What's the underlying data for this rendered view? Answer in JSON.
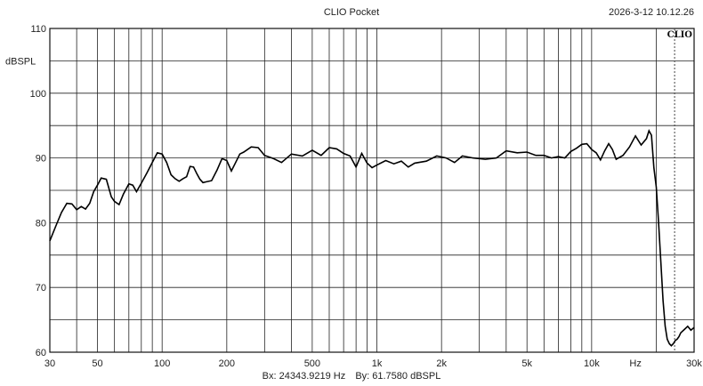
{
  "header": {
    "title": "CLIO Pocket",
    "timestamp": "2026-3-12 10.12.26"
  },
  "logo": "CLIO",
  "readout": {
    "bx": "Bx: 24343.9219 Hz",
    "by": "By: 61.7580 dBSPL"
  },
  "chart_data": {
    "type": "line",
    "x_scale": "log",
    "xlim": [
      30,
      30000
    ],
    "ylim": [
      60,
      110
    ],
    "ylabel": "dBSPL",
    "xunit_label": "Hz",
    "grid": true,
    "x_ticks": [
      {
        "value": 30,
        "label": "30"
      },
      {
        "value": 50,
        "label": "50"
      },
      {
        "value": 100,
        "label": "100"
      },
      {
        "value": 200,
        "label": "200"
      },
      {
        "value": 500,
        "label": "500"
      },
      {
        "value": 1000,
        "label": "1k"
      },
      {
        "value": 2000,
        "label": "2k"
      },
      {
        "value": 5000,
        "label": "5k"
      },
      {
        "value": 10000,
        "label": "10k"
      },
      {
        "value": 30000,
        "label": "30k"
      }
    ],
    "y_ticks": [
      60,
      70,
      80,
      90,
      100,
      110
    ],
    "cursor_x": 24343.9219,
    "series": [
      {
        "x": [
          30,
          32,
          34,
          36,
          38,
          40,
          42,
          44,
          46,
          48,
          50,
          52,
          55,
          58,
          60,
          63,
          66,
          70,
          73,
          76,
          80,
          85,
          90,
          95,
          100,
          105,
          110,
          115,
          120,
          125,
          130,
          135,
          140,
          145,
          150,
          155,
          160,
          170,
          180,
          190,
          200,
          210,
          220,
          230,
          240,
          260,
          280,
          300,
          330,
          360,
          400,
          450,
          500,
          550,
          600,
          650,
          700,
          750,
          800,
          850,
          900,
          950,
          1000,
          1100,
          1200,
          1300,
          1400,
          1500,
          1700,
          1900,
          2100,
          2300,
          2500,
          2800,
          3200,
          3600,
          4000,
          4500,
          5000,
          5500,
          6000,
          6500,
          7000,
          7500,
          8000,
          8500,
          9000,
          9500,
          10000,
          10500,
          11000,
          11500,
          12000,
          12500,
          13000,
          14000,
          15000,
          16000,
          17000,
          18000,
          18500,
          19000,
          19500,
          20000,
          20500,
          21000,
          21500,
          22000,
          22500,
          23000,
          23500,
          24000,
          24500,
          25000,
          25500,
          26000,
          27000,
          28000,
          29000,
          30000
        ],
        "y": [
          77.2,
          79.5,
          81.6,
          83.0,
          82.9,
          82.0,
          82.5,
          82.1,
          83.0,
          84.8,
          85.8,
          86.9,
          86.7,
          84.0,
          83.3,
          82.8,
          84.4,
          86.0,
          85.8,
          84.8,
          86.1,
          87.7,
          89.3,
          90.8,
          90.6,
          89.3,
          87.4,
          86.8,
          86.4,
          86.8,
          87.1,
          88.7,
          88.6,
          87.6,
          86.7,
          86.2,
          86.3,
          86.5,
          88.1,
          89.9,
          89.6,
          88.0,
          89.3,
          90.6,
          90.9,
          91.7,
          91.6,
          90.4,
          89.9,
          89.3,
          90.6,
          90.3,
          91.2,
          90.4,
          91.6,
          91.4,
          90.7,
          90.3,
          88.6,
          90.7,
          89.2,
          88.5,
          88.9,
          89.6,
          89.1,
          89.5,
          88.6,
          89.2,
          89.5,
          90.3,
          90.0,
          89.3,
          90.3,
          90.0,
          89.8,
          90.0,
          91.1,
          90.8,
          90.9,
          90.4,
          90.4,
          90.0,
          90.2,
          90.0,
          91.0,
          91.5,
          92.1,
          92.2,
          91.3,
          90.8,
          89.7,
          91.1,
          92.2,
          91.3,
          89.8,
          90.4,
          91.7,
          93.4,
          92.0,
          93.0,
          94.2,
          93.5,
          88.5,
          85.5,
          80.0,
          74.0,
          68.0,
          64.0,
          62.0,
          61.3,
          61.0,
          61.3,
          61.8,
          62.0,
          62.4,
          63.0,
          63.5,
          64.0,
          63.4,
          63.8
        ]
      }
    ]
  }
}
